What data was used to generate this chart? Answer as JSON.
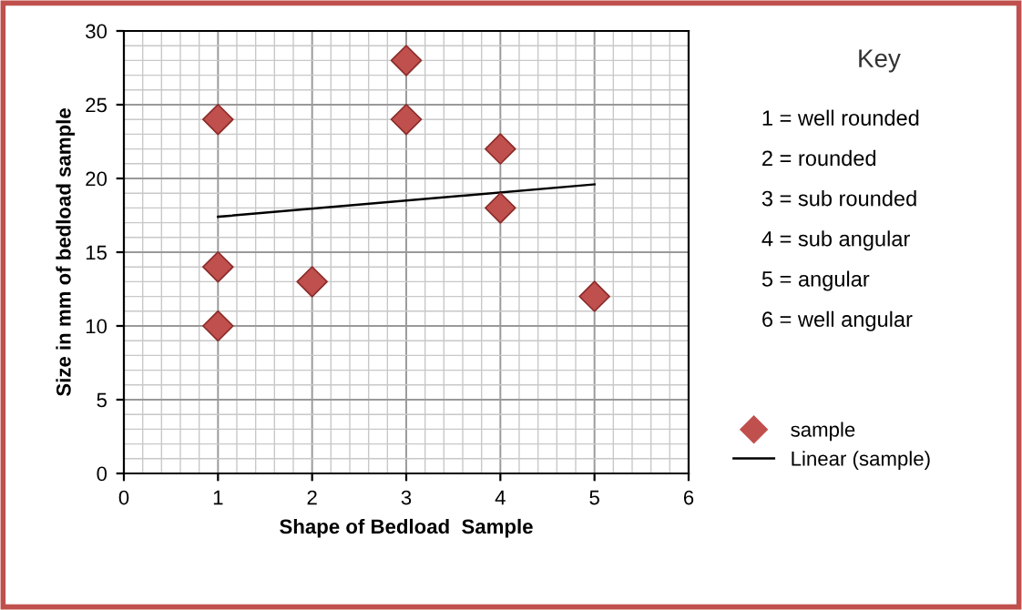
{
  "chart_data": {
    "type": "scatter",
    "xlabel": "Shape of Bedload  Sample",
    "ylabel": "Size in mm of bedload sample",
    "x": [
      1,
      1,
      1,
      2,
      3,
      3,
      4,
      4,
      5
    ],
    "series": [
      {
        "name": "sample",
        "color": "#c0504d",
        "marker": "diamond",
        "values": [
          24,
          14,
          10,
          13,
          28,
          24,
          22,
          18,
          12
        ]
      },
      {
        "name": "Linear (sample)",
        "type": "line",
        "color": "#000000",
        "x": [
          1,
          5
        ],
        "values": [
          17.4,
          19.6
        ]
      }
    ],
    "xlim": [
      0,
      6
    ],
    "xticks": [
      0,
      1,
      2,
      3,
      4,
      5,
      6
    ],
    "ylim": [
      0,
      30
    ],
    "yticks": [
      0,
      5,
      10,
      15,
      20,
      25,
      30
    ],
    "grid": true,
    "legend": "right",
    "annotations": [
      "Key",
      "1 = well rounded",
      "2 = rounded",
      "3 = sub rounded",
      "4 = sub angular",
      "5 = angular",
      "6 = well angular"
    ]
  }
}
